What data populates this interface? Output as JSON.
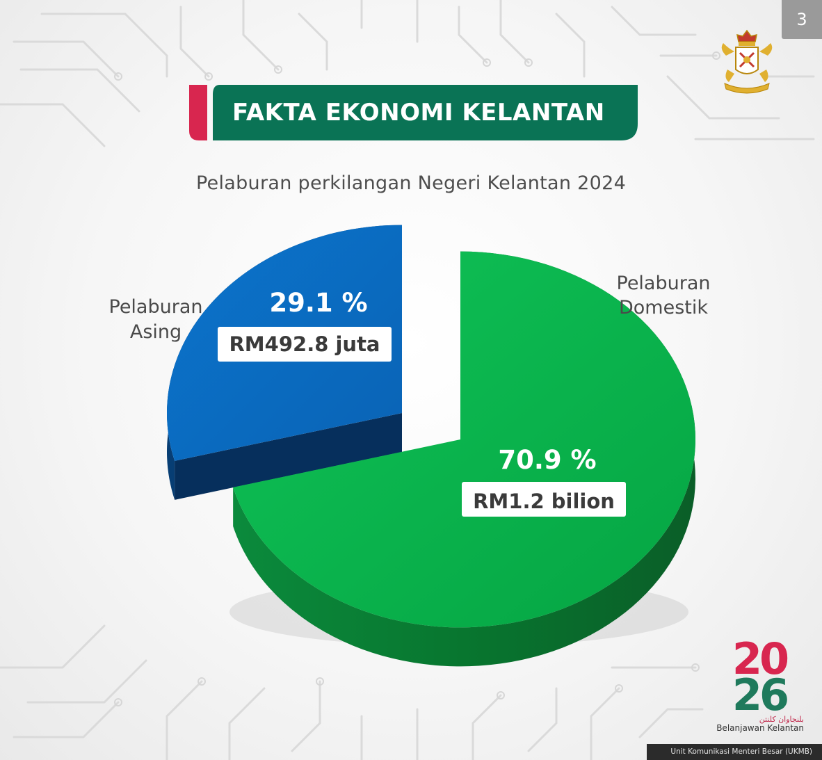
{
  "page_number": "3",
  "header": {
    "title": "FAKTA EKONOMI KELANTAN"
  },
  "crest": {
    "icon": "kelantan-state-crest-icon"
  },
  "colors": {
    "brand_green": "#0a7355",
    "accent_red": "#d8264f",
    "slice_blue": "#0a6cc2",
    "slice_green": "#06b04a"
  },
  "chart_data": {
    "type": "pie",
    "title": "Pelaburan perkilangan Negeri Kelantan 2024",
    "slices": [
      {
        "label": "Pelaburan Asing",
        "label_lines": [
          "Pelaburan",
          "Asing"
        ],
        "percent": 29.1,
        "percent_text": "29.1 %",
        "value_text": "RM492.8 juta",
        "color": "#0a6cc2",
        "exploded": true
      },
      {
        "label": "Pelaburan Domestik",
        "label_lines": [
          "Pelaburan",
          "Domestik"
        ],
        "percent": 70.9,
        "percent_text": "70.9 %",
        "value_text": "RM1.2 bilion",
        "color": "#06b04a",
        "exploded": false
      }
    ]
  },
  "logo": {
    "year_top": "20",
    "year_bottom": "26",
    "arabic_text": "بلنجاوان كلنتن",
    "caption": "Belanjawan Kelantan"
  },
  "footer": {
    "text": "Unit Komunikasi Menteri Besar (UKMB)"
  }
}
